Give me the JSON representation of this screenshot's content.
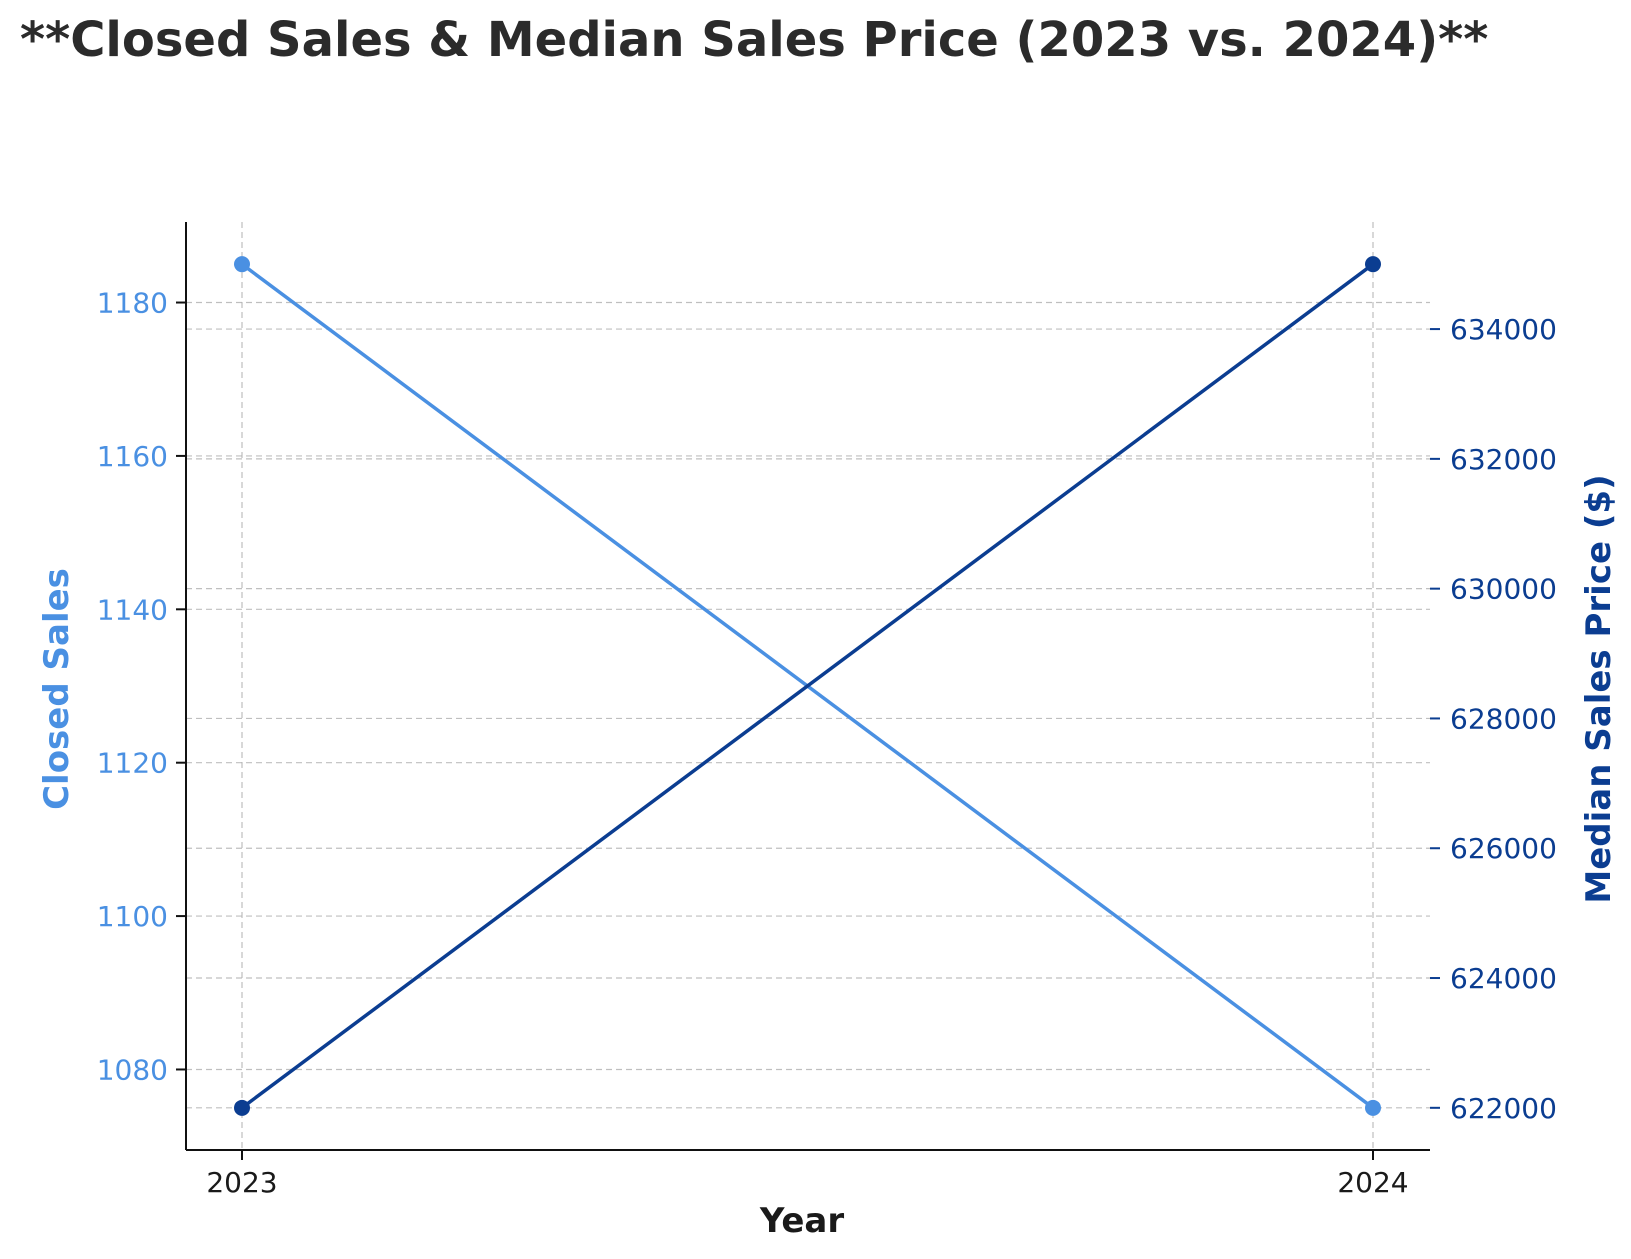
{
  "chart_data": {
    "type": "line",
    "title": "**Closed Sales & Median Sales Price (2023 vs. 2024)**",
    "xlabel": "Year",
    "x": [
      "2023",
      "2024"
    ],
    "grid": true,
    "series": [
      {
        "name": "Closed Sales",
        "axis": "left",
        "color": "#4a90e2",
        "values": [
          1185,
          1075
        ]
      },
      {
        "name": "Median Sales Price ($)",
        "axis": "right",
        "color": "#0b3d91",
        "values": [
          622000,
          635000
        ]
      }
    ],
    "y_left": {
      "label": "Closed Sales",
      "color": "#4a90e2",
      "lim": [
        1069.5,
        1190.5
      ],
      "ticks": [
        1080,
        1100,
        1120,
        1140,
        1160,
        1180
      ]
    },
    "y_right": {
      "label": "Median Sales Price ($)",
      "color": "#0b3d91",
      "lim": [
        621350,
        635650
      ],
      "ticks": [
        622000,
        624000,
        626000,
        628000,
        630000,
        632000,
        634000
      ]
    }
  }
}
